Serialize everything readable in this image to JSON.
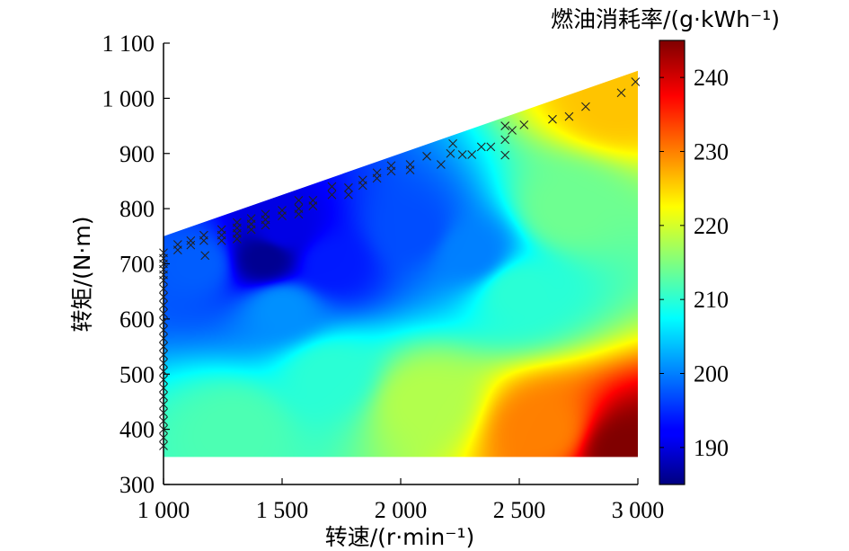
{
  "chart_data": {
    "type": "heatmap",
    "title": "",
    "xlabel": "转速/(r·min⁻¹)",
    "ylabel": "转矩/(N·m)",
    "colorbar_label": "燃油消耗率/(g·kWh⁻¹)",
    "xlim": [
      1000,
      3000
    ],
    "ylim": [
      300,
      1100
    ],
    "color_range": [
      185,
      245
    ],
    "x_ticks": [
      1000,
      1500,
      2000,
      2500,
      3000
    ],
    "x_tick_labels": [
      "1 000",
      "1 500",
      "2 000",
      "2 500",
      "3 000"
    ],
    "y_ticks": [
      300,
      400,
      500,
      600,
      700,
      800,
      900,
      1000,
      1100
    ],
    "y_tick_labels": [
      "300",
      "400",
      "500",
      "600",
      "700",
      "800",
      "900",
      "1 000",
      "1 100"
    ],
    "colorbar_ticks": [
      190,
      200,
      210,
      220,
      230,
      240
    ],
    "colorbar_tick_labels": [
      "190",
      "200",
      "210",
      "220",
      "230",
      "240"
    ],
    "map_region": {
      "speed_range": [
        1000,
        3000
      ],
      "min_torque": 350,
      "max_torque_at_1000": 750,
      "max_torque_at_3000": 1050
    },
    "bsfc_field_samples": [
      {
        "speed": 1430,
        "torque": 710,
        "bsfc": 186
      },
      {
        "speed": 1500,
        "torque": 760,
        "bsfc": 191
      },
      {
        "speed": 1700,
        "torque": 700,
        "bsfc": 194
      },
      {
        "speed": 2050,
        "torque": 760,
        "bsfc": 197
      },
      {
        "speed": 2300,
        "torque": 720,
        "bsfc": 200
      },
      {
        "speed": 1150,
        "torque": 700,
        "bsfc": 198
      },
      {
        "speed": 1500,
        "torque": 620,
        "bsfc": 201
      },
      {
        "speed": 1700,
        "torque": 500,
        "bsfc": 210
      },
      {
        "speed": 1300,
        "torque": 400,
        "bsfc": 212
      },
      {
        "speed": 2100,
        "torque": 450,
        "bsfc": 218
      },
      {
        "speed": 2500,
        "torque": 650,
        "bsfc": 210
      },
      {
        "speed": 2700,
        "torque": 800,
        "bsfc": 214
      },
      {
        "speed": 2900,
        "torque": 1000,
        "bsfc": 226
      },
      {
        "speed": 2600,
        "torque": 400,
        "bsfc": 230
      },
      {
        "speed": 2950,
        "torque": 360,
        "bsfc": 245
      }
    ],
    "operating_points": [
      {
        "speed": 1000,
        "torque": 720
      },
      {
        "speed": 1000,
        "torque": 710
      },
      {
        "speed": 1000,
        "torque": 700
      },
      {
        "speed": 1000,
        "torque": 690
      },
      {
        "speed": 1000,
        "torque": 680
      },
      {
        "speed": 1000,
        "torque": 670
      },
      {
        "speed": 1000,
        "torque": 655
      },
      {
        "speed": 1000,
        "torque": 640
      },
      {
        "speed": 1000,
        "torque": 625
      },
      {
        "speed": 1000,
        "torque": 610
      },
      {
        "speed": 1000,
        "torque": 595
      },
      {
        "speed": 1000,
        "torque": 580
      },
      {
        "speed": 1000,
        "torque": 565
      },
      {
        "speed": 1000,
        "torque": 550
      },
      {
        "speed": 1000,
        "torque": 535
      },
      {
        "speed": 1000,
        "torque": 520
      },
      {
        "speed": 1000,
        "torque": 505
      },
      {
        "speed": 1000,
        "torque": 490
      },
      {
        "speed": 1000,
        "torque": 475
      },
      {
        "speed": 1000,
        "torque": 460
      },
      {
        "speed": 1000,
        "torque": 445
      },
      {
        "speed": 1000,
        "torque": 430
      },
      {
        "speed": 1000,
        "torque": 415
      },
      {
        "speed": 1000,
        "torque": 400
      },
      {
        "speed": 1000,
        "torque": 385
      },
      {
        "speed": 1000,
        "torque": 370
      },
      {
        "speed": 1060,
        "torque": 735
      },
      {
        "speed": 1060,
        "torque": 725
      },
      {
        "speed": 1115,
        "torque": 742
      },
      {
        "speed": 1115,
        "torque": 734
      },
      {
        "speed": 1170,
        "torque": 752
      },
      {
        "speed": 1170,
        "torque": 742
      },
      {
        "speed": 1175,
        "torque": 715
      },
      {
        "speed": 1245,
        "torque": 762
      },
      {
        "speed": 1245,
        "torque": 752
      },
      {
        "speed": 1245,
        "torque": 742
      },
      {
        "speed": 1310,
        "torque": 775
      },
      {
        "speed": 1310,
        "torque": 765
      },
      {
        "speed": 1310,
        "torque": 755
      },
      {
        "speed": 1310,
        "torque": 745
      },
      {
        "speed": 1370,
        "torque": 782
      },
      {
        "speed": 1370,
        "torque": 772
      },
      {
        "speed": 1370,
        "torque": 762
      },
      {
        "speed": 1430,
        "torque": 790
      },
      {
        "speed": 1430,
        "torque": 780
      },
      {
        "speed": 1430,
        "torque": 770
      },
      {
        "speed": 1500,
        "torque": 797
      },
      {
        "speed": 1500,
        "torque": 787
      },
      {
        "speed": 1570,
        "torque": 815
      },
      {
        "speed": 1570,
        "torque": 800
      },
      {
        "speed": 1570,
        "torque": 790
      },
      {
        "speed": 1630,
        "torque": 815
      },
      {
        "speed": 1630,
        "torque": 805
      },
      {
        "speed": 1710,
        "torque": 840
      },
      {
        "speed": 1710,
        "torque": 825
      },
      {
        "speed": 1780,
        "torque": 838
      },
      {
        "speed": 1780,
        "torque": 825
      },
      {
        "speed": 1840,
        "torque": 852
      },
      {
        "speed": 1840,
        "torque": 842
      },
      {
        "speed": 1900,
        "torque": 865
      },
      {
        "speed": 1900,
        "torque": 855
      },
      {
        "speed": 1960,
        "torque": 878
      },
      {
        "speed": 1960,
        "torque": 868
      },
      {
        "speed": 2040,
        "torque": 880
      },
      {
        "speed": 2040,
        "torque": 870
      },
      {
        "speed": 2110,
        "torque": 895
      },
      {
        "speed": 2170,
        "torque": 880
      },
      {
        "speed": 2210,
        "torque": 900
      },
      {
        "speed": 2220,
        "torque": 918
      },
      {
        "speed": 2260,
        "torque": 898
      },
      {
        "speed": 2300,
        "torque": 898
      },
      {
        "speed": 2340,
        "torque": 912
      },
      {
        "speed": 2380,
        "torque": 912
      },
      {
        "speed": 2440,
        "torque": 897
      },
      {
        "speed": 2440,
        "torque": 925
      },
      {
        "speed": 2440,
        "torque": 950
      },
      {
        "speed": 2470,
        "torque": 942
      },
      {
        "speed": 2520,
        "torque": 952
      },
      {
        "speed": 2640,
        "torque": 962
      },
      {
        "speed": 2710,
        "torque": 967
      },
      {
        "speed": 2780,
        "torque": 985
      },
      {
        "speed": 2930,
        "torque": 1010
      },
      {
        "speed": 2990,
        "torque": 1030
      }
    ]
  }
}
